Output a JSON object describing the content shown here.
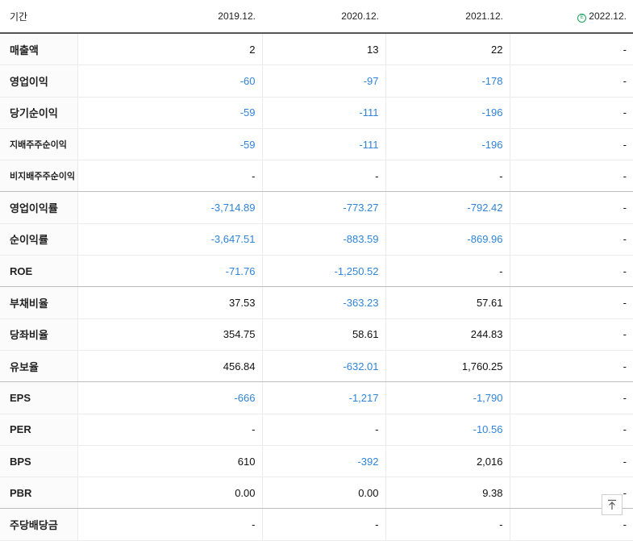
{
  "header": {
    "label": "기간",
    "periods": [
      "2019.12.",
      "2020.12.",
      "2021.12.",
      "2022.12."
    ],
    "estimate_badge": "E"
  },
  "rows": [
    {
      "label": "매출액",
      "values": [
        "2",
        "13",
        "22",
        "-"
      ],
      "neg": [
        false,
        false,
        false,
        false
      ]
    },
    {
      "label": "영업이익",
      "values": [
        "-60",
        "-97",
        "-178",
        "-"
      ],
      "neg": [
        true,
        true,
        true,
        false
      ]
    },
    {
      "label": "당기순이익",
      "values": [
        "-59",
        "-111",
        "-196",
        "-"
      ],
      "neg": [
        true,
        true,
        true,
        false
      ]
    },
    {
      "label": "지배주주순이익",
      "values": [
        "-59",
        "-111",
        "-196",
        "-"
      ],
      "neg": [
        true,
        true,
        true,
        false
      ],
      "small": true
    },
    {
      "label": "비지배주주순이익",
      "values": [
        "-",
        "-",
        "-",
        "-"
      ],
      "neg": [
        false,
        false,
        false,
        false
      ],
      "small": true,
      "group_end": true
    },
    {
      "label": "영업이익률",
      "values": [
        "-3,714.89",
        "-773.27",
        "-792.42",
        "-"
      ],
      "neg": [
        true,
        true,
        true,
        false
      ]
    },
    {
      "label": "순이익률",
      "values": [
        "-3,647.51",
        "-883.59",
        "-869.96",
        "-"
      ],
      "neg": [
        true,
        true,
        true,
        false
      ]
    },
    {
      "label": "ROE",
      "values": [
        "-71.76",
        "-1,250.52",
        "-",
        "-"
      ],
      "neg": [
        true,
        true,
        false,
        false
      ],
      "group_end": true
    },
    {
      "label": "부채비율",
      "values": [
        "37.53",
        "-363.23",
        "57.61",
        "-"
      ],
      "neg": [
        false,
        true,
        false,
        false
      ]
    },
    {
      "label": "당좌비율",
      "values": [
        "354.75",
        "58.61",
        "244.83",
        "-"
      ],
      "neg": [
        false,
        false,
        false,
        false
      ]
    },
    {
      "label": "유보율",
      "values": [
        "456.84",
        "-632.01",
        "1,760.25",
        "-"
      ],
      "neg": [
        false,
        true,
        false,
        false
      ],
      "group_end": true
    },
    {
      "label": "EPS",
      "values": [
        "-666",
        "-1,217",
        "-1,790",
        "-"
      ],
      "neg": [
        true,
        true,
        true,
        false
      ]
    },
    {
      "label": "PER",
      "values": [
        "-",
        "-",
        "-10.56",
        "-"
      ],
      "neg": [
        false,
        false,
        true,
        false
      ]
    },
    {
      "label": "BPS",
      "values": [
        "610",
        "-392",
        "2,016",
        "-"
      ],
      "neg": [
        false,
        true,
        false,
        false
      ]
    },
    {
      "label": "PBR",
      "values": [
        "0.00",
        "0.00",
        "9.38",
        "-"
      ],
      "neg": [
        false,
        false,
        false,
        false
      ],
      "group_end": true
    },
    {
      "label": "주당배당금",
      "values": [
        "-",
        "-",
        "-",
        "-"
      ],
      "neg": [
        false,
        false,
        false,
        false
      ]
    }
  ],
  "colors": {
    "negative": "#2f84d8",
    "estimate_badge": "#19a35b"
  },
  "icons": {
    "scroll_top": "arrow-up-to-top-icon"
  }
}
